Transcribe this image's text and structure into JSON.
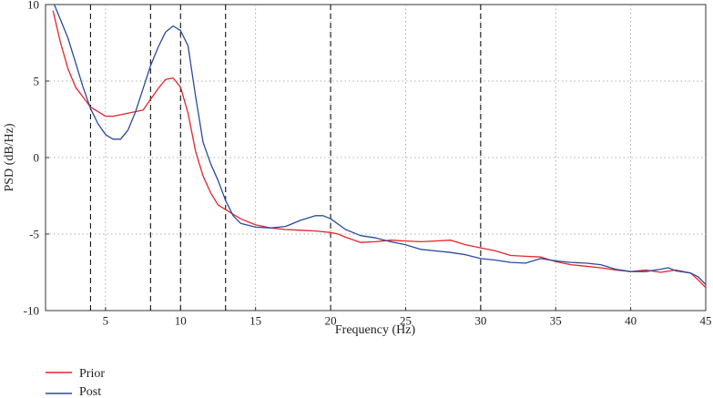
{
  "chart_data": {
    "type": "line",
    "xlabel": "Frequency (Hz)",
    "ylabel": "PSD (dB/Hz)",
    "xlim": [
      1,
      45
    ],
    "ylim": [
      -10,
      10
    ],
    "x_ticks": [
      5,
      10,
      15,
      20,
      25,
      30,
      35,
      40,
      45
    ],
    "y_ticks": [
      -10,
      -5,
      0,
      5,
      10
    ],
    "grid": "dotted",
    "legend_position": "bottom-left",
    "band_markers": [
      4,
      8,
      10,
      13,
      20,
      30
    ],
    "series": [
      {
        "name": "Prior",
        "color": "#e8232b",
        "points": [
          [
            1.5,
            9.6
          ],
          [
            2,
            7.5
          ],
          [
            2.5,
            5.8
          ],
          [
            3,
            4.6
          ],
          [
            4,
            3.3
          ],
          [
            5,
            2.7
          ],
          [
            5.5,
            2.7
          ],
          [
            6,
            2.8
          ],
          [
            6.5,
            2.9
          ],
          [
            7.5,
            3.1
          ],
          [
            8.5,
            4.5
          ],
          [
            9,
            5.1
          ],
          [
            9.5,
            5.2
          ],
          [
            10,
            4.6
          ],
          [
            10.5,
            2.9
          ],
          [
            11,
            0.4
          ],
          [
            11.5,
            -1.2
          ],
          [
            12,
            -2.3
          ],
          [
            12.5,
            -3.1
          ],
          [
            13,
            -3.4
          ],
          [
            14,
            -4.0
          ],
          [
            15,
            -4.4
          ],
          [
            16,
            -4.6
          ],
          [
            17,
            -4.7
          ],
          [
            18,
            -4.75
          ],
          [
            19,
            -4.8
          ],
          [
            20,
            -4.9
          ],
          [
            20.5,
            -5.0
          ],
          [
            21,
            -5.2
          ],
          [
            22,
            -5.55
          ],
          [
            23,
            -5.5
          ],
          [
            24,
            -5.4
          ],
          [
            25,
            -5.45
          ],
          [
            26,
            -5.5
          ],
          [
            27,
            -5.45
          ],
          [
            28,
            -5.4
          ],
          [
            29,
            -5.7
          ],
          [
            30,
            -5.9
          ],
          [
            31,
            -6.1
          ],
          [
            32,
            -6.4
          ],
          [
            33,
            -6.45
          ],
          [
            34,
            -6.5
          ],
          [
            35,
            -6.8
          ],
          [
            36,
            -7.0
          ],
          [
            37,
            -7.1
          ],
          [
            38,
            -7.2
          ],
          [
            39,
            -7.35
          ],
          [
            40,
            -7.45
          ],
          [
            41,
            -7.35
          ],
          [
            42,
            -7.5
          ],
          [
            43,
            -7.35
          ],
          [
            44,
            -7.55
          ],
          [
            44.5,
            -8.0
          ],
          [
            45,
            -8.5
          ]
        ]
      },
      {
        "name": "Post",
        "color": "#2a4a9b",
        "points": [
          [
            1.5,
            10.2
          ],
          [
            2,
            9.0
          ],
          [
            2.5,
            7.8
          ],
          [
            3,
            6.2
          ],
          [
            3.5,
            4.6
          ],
          [
            4,
            3.2
          ],
          [
            4.5,
            2.2
          ],
          [
            5,
            1.5
          ],
          [
            5.5,
            1.2
          ],
          [
            6,
            1.2
          ],
          [
            6.5,
            1.8
          ],
          [
            7,
            3.0
          ],
          [
            7.5,
            4.5
          ],
          [
            8,
            6.0
          ],
          [
            8.5,
            7.2
          ],
          [
            9,
            8.2
          ],
          [
            9.5,
            8.6
          ],
          [
            10,
            8.3
          ],
          [
            10.5,
            7.3
          ],
          [
            11,
            4.0
          ],
          [
            11.5,
            1.0
          ],
          [
            12,
            -0.4
          ],
          [
            12.5,
            -1.5
          ],
          [
            13,
            -2.8
          ],
          [
            13.5,
            -3.8
          ],
          [
            14,
            -4.3
          ],
          [
            15,
            -4.55
          ],
          [
            16,
            -4.6
          ],
          [
            17,
            -4.5
          ],
          [
            18,
            -4.1
          ],
          [
            19,
            -3.8
          ],
          [
            19.5,
            -3.8
          ],
          [
            20,
            -4.0
          ],
          [
            21,
            -4.7
          ],
          [
            22,
            -5.1
          ],
          [
            23,
            -5.25
          ],
          [
            24,
            -5.5
          ],
          [
            25,
            -5.7
          ],
          [
            26,
            -6.0
          ],
          [
            27,
            -6.1
          ],
          [
            28,
            -6.2
          ],
          [
            29,
            -6.35
          ],
          [
            30,
            -6.6
          ],
          [
            31,
            -6.7
          ],
          [
            32,
            -6.85
          ],
          [
            33,
            -6.9
          ],
          [
            34,
            -6.6
          ],
          [
            35,
            -6.75
          ],
          [
            36,
            -6.85
          ],
          [
            37,
            -6.9
          ],
          [
            38,
            -7.0
          ],
          [
            39,
            -7.3
          ],
          [
            40,
            -7.45
          ],
          [
            41,
            -7.45
          ],
          [
            42,
            -7.3
          ],
          [
            42.5,
            -7.2
          ],
          [
            43,
            -7.4
          ],
          [
            44,
            -7.55
          ],
          [
            44.5,
            -7.8
          ],
          [
            45,
            -8.3
          ]
        ]
      }
    ]
  }
}
